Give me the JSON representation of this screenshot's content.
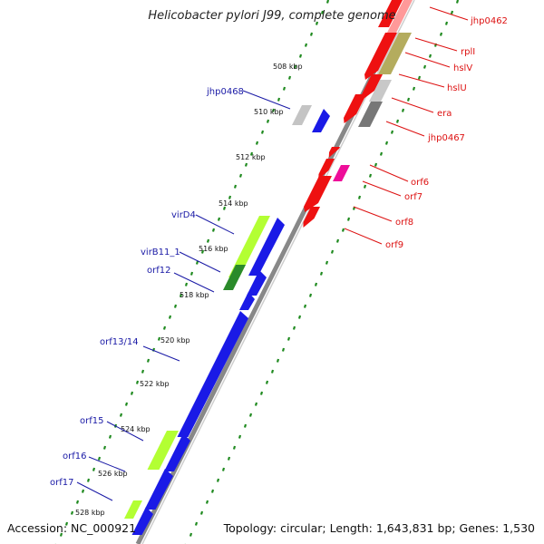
{
  "title": "Helicobacter pylori J99, complete genome",
  "footer": {
    "accession": "Accession: NC_000921",
    "topology": "Topology: circular; Length: 1,643,831 bp; Genes: 1,530"
  },
  "colors": {
    "reverse_label": "#1a1aa6",
    "forward_label": "#dd1111",
    "tick_dots": "#1f8a1f",
    "backbone": "#888888"
  },
  "ticks": [
    "508 kbp",
    "510 kbp",
    "512 kbp",
    "514 kbp",
    "516 kbp",
    "518 kbp",
    "520 kbp",
    "522 kbp",
    "524 kbp",
    "526 kbp",
    "528 kbp"
  ],
  "left_labels": [
    "jhp0468",
    "virD4",
    "virB11_1",
    "orf12",
    "orf13/14",
    "orf15",
    "orf16",
    "orf17"
  ],
  "right_labels": [
    "jhp0462",
    "rplI",
    "hslV",
    "hslU",
    "era",
    "jhp0467",
    "orf6",
    "orf7",
    "orf8",
    "orf9"
  ]
}
